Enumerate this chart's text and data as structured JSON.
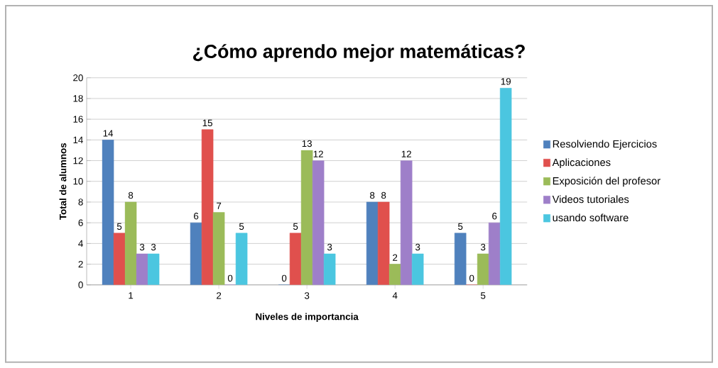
{
  "chart_data": {
    "type": "bar",
    "title": "¿Cómo aprendo mejor matemáticas?",
    "xlabel": "Niveles de importancia",
    "ylabel": "Total de alumnos",
    "categories": [
      "1",
      "2",
      "3",
      "4",
      "5"
    ],
    "series": [
      {
        "name": "Resolviendo Ejercicios",
        "color": "#4f81bd",
        "values": [
          14,
          6,
          0,
          8,
          5
        ]
      },
      {
        "name": "Aplicaciones",
        "color": "#e0504d",
        "values": [
          5,
          15,
          5,
          8,
          0
        ]
      },
      {
        "name": "Exposición del profesor",
        "color": "#9bbb59",
        "values": [
          8,
          7,
          13,
          2,
          3
        ]
      },
      {
        "name": "Videos tutoriales",
        "color": "#9e7fc9",
        "values": [
          3,
          0,
          12,
          12,
          6
        ]
      },
      {
        "name": "usando software",
        "color": "#4bc6e0",
        "values": [
          3,
          5,
          3,
          3,
          19
        ]
      }
    ],
    "ylim": [
      0,
      20
    ],
    "yticks": [
      0,
      2,
      4,
      6,
      8,
      10,
      12,
      14,
      16,
      18,
      20
    ],
    "grid": "y",
    "legend": "right",
    "data_labels": true
  }
}
